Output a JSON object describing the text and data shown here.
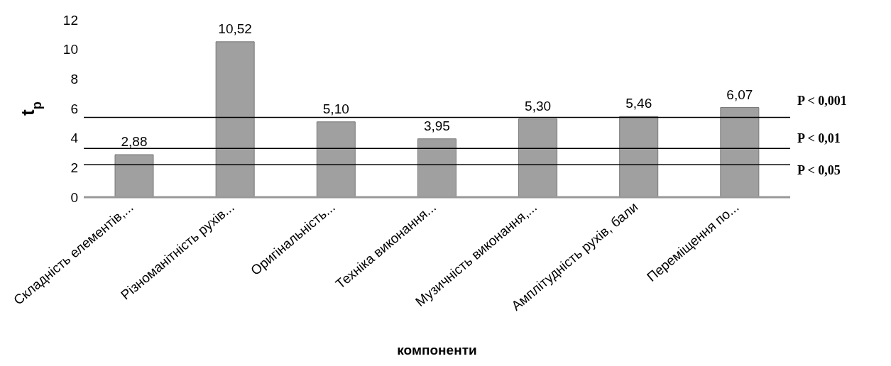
{
  "chart_data": {
    "type": "bar",
    "xlabel": "компоненти",
    "ylabel": "t$_{p}$",
    "categories": [
      "Складність елементів,...",
      "Різноманітність рухів...",
      "Оригінальність...",
      "Техніка виконання...",
      "Музичність виконання,...",
      "Амплітудність рухів, бали",
      "Переміщення по..."
    ],
    "values": [
      2.88,
      10.52,
      5.1,
      3.95,
      5.3,
      5.46,
      6.07
    ],
    "value_labels": [
      "2,88",
      "10,52",
      "5,10",
      "3,95",
      "5,30",
      "5,46",
      "6,07"
    ],
    "color": "#a0a0a0",
    "ylim": [
      0,
      12
    ],
    "yticks": [
      0,
      2,
      4,
      6,
      8,
      10,
      12
    ],
    "grid": false,
    "ref_lines": [
      {
        "axis": "y",
        "value": 5.4,
        "label": "P < 0,001",
        "color": "#000000"
      },
      {
        "axis": "y",
        "value": 3.3,
        "label": "P < 0,01",
        "color": "#000000"
      },
      {
        "axis": "y",
        "value": 2.2,
        "label": "P < 0,05",
        "color": "#000000"
      }
    ]
  }
}
